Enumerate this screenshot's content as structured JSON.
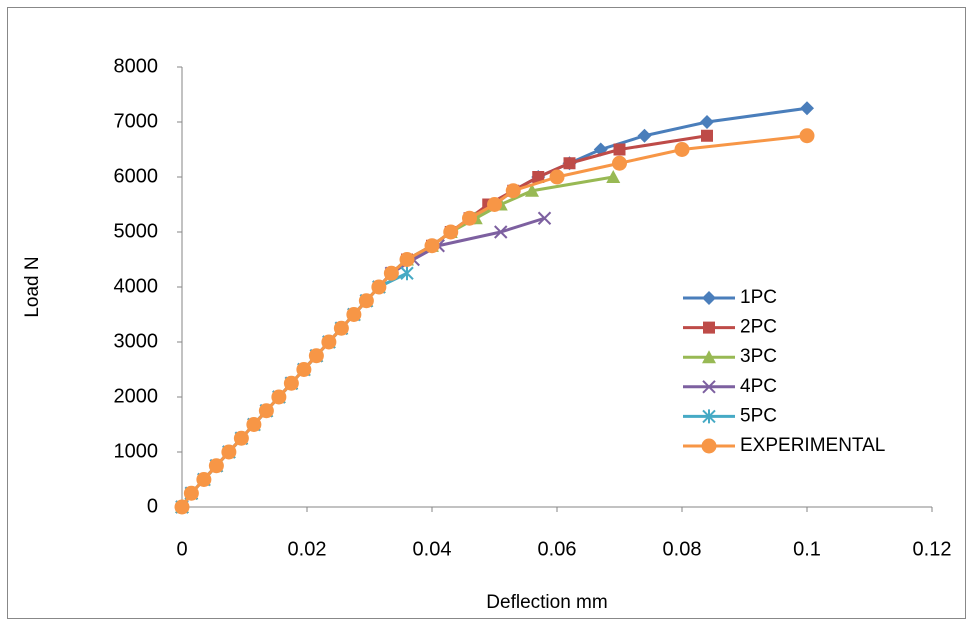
{
  "chart_data": {
    "type": "line",
    "xlabel": "Deflection mm",
    "ylabel": "Load N",
    "xlim": [
      0,
      0.12
    ],
    "xticks": [
      0,
      0.02,
      0.04,
      0.06,
      0.08,
      0.1,
      0.12
    ],
    "ylim": [
      0,
      8000
    ],
    "yticks": [
      0,
      1000,
      2000,
      3000,
      4000,
      5000,
      6000,
      7000,
      8000
    ],
    "series": [
      {
        "name": "1PC",
        "color": "#4a7ebb",
        "marker": "diamond",
        "x": [
          0,
          0.0015,
          0.0035,
          0.0055,
          0.0075,
          0.0095,
          0.0115,
          0.0135,
          0.0155,
          0.0175,
          0.0195,
          0.0215,
          0.0235,
          0.0255,
          0.0275,
          0.0295,
          0.0315,
          0.0335,
          0.036,
          0.04,
          0.043,
          0.046,
          0.05,
          0.053,
          0.057,
          0.062,
          0.067,
          0.074,
          0.084,
          0.1
        ],
        "values": [
          0,
          250,
          500,
          750,
          1000,
          1250,
          1500,
          1750,
          2000,
          2250,
          2500,
          2750,
          3000,
          3250,
          3500,
          3750,
          4000,
          4250,
          4500,
          4750,
          5000,
          5250,
          5500,
          5750,
          6000,
          6250,
          6500,
          6750,
          7000,
          7250
        ]
      },
      {
        "name": "2PC",
        "color": "#be4b48",
        "marker": "square",
        "x": [
          0,
          0.0015,
          0.0035,
          0.0055,
          0.0075,
          0.0095,
          0.0115,
          0.0135,
          0.0155,
          0.0175,
          0.0195,
          0.0215,
          0.0235,
          0.0255,
          0.0275,
          0.0295,
          0.0315,
          0.0335,
          0.036,
          0.04,
          0.043,
          0.046,
          0.049,
          0.053,
          0.057,
          0.062,
          0.07,
          0.084
        ],
        "values": [
          0,
          250,
          500,
          750,
          1000,
          1250,
          1500,
          1750,
          2000,
          2250,
          2500,
          2750,
          3000,
          3250,
          3500,
          3750,
          4000,
          4250,
          4500,
          4750,
          5000,
          5250,
          5500,
          5750,
          6000,
          6250,
          6500,
          6750
        ]
      },
      {
        "name": "3PC",
        "color": "#98b954",
        "marker": "triangle",
        "x": [
          0,
          0.0015,
          0.0035,
          0.0055,
          0.0075,
          0.0095,
          0.0115,
          0.0135,
          0.0155,
          0.0175,
          0.0195,
          0.0215,
          0.0235,
          0.0255,
          0.0275,
          0.0295,
          0.0315,
          0.0335,
          0.036,
          0.04,
          0.043,
          0.047,
          0.051,
          0.056,
          0.069
        ],
        "values": [
          0,
          250,
          500,
          750,
          1000,
          1250,
          1500,
          1750,
          2000,
          2250,
          2500,
          2750,
          3000,
          3250,
          3500,
          3750,
          4000,
          4250,
          4500,
          4750,
          5000,
          5250,
          5500,
          5750,
          6000
        ]
      },
      {
        "name": "4PC",
        "color": "#7d60a0",
        "marker": "x",
        "x": [
          0,
          0.0015,
          0.0035,
          0.0055,
          0.0075,
          0.0095,
          0.0115,
          0.0135,
          0.0155,
          0.0175,
          0.0195,
          0.0215,
          0.0235,
          0.0255,
          0.0275,
          0.0295,
          0.0315,
          0.0335,
          0.037,
          0.041,
          0.051,
          0.058
        ],
        "values": [
          0,
          250,
          500,
          750,
          1000,
          1250,
          1500,
          1750,
          2000,
          2250,
          2500,
          2750,
          3000,
          3250,
          3500,
          3750,
          4000,
          4250,
          4500,
          4750,
          5000,
          5250
        ]
      },
      {
        "name": "5PC",
        "color": "#46aac5",
        "marker": "star",
        "x": [
          0,
          0.0015,
          0.0035,
          0.0055,
          0.0075,
          0.0095,
          0.0115,
          0.0135,
          0.0155,
          0.0175,
          0.0195,
          0.0215,
          0.0235,
          0.0255,
          0.0275,
          0.0295,
          0.0315,
          0.036
        ],
        "values": [
          0,
          250,
          500,
          750,
          1000,
          1250,
          1500,
          1750,
          2000,
          2250,
          2500,
          2750,
          3000,
          3250,
          3500,
          3750,
          4000,
          4250
        ]
      },
      {
        "name": "EXPERIMENTAL",
        "color": "#f79646",
        "marker": "circle",
        "x": [
          0,
          0.0015,
          0.0035,
          0.0055,
          0.0075,
          0.0095,
          0.0115,
          0.0135,
          0.0155,
          0.0175,
          0.0195,
          0.0215,
          0.0235,
          0.0255,
          0.0275,
          0.0295,
          0.0315,
          0.0335,
          0.036,
          0.04,
          0.043,
          0.046,
          0.05,
          0.053,
          0.06,
          0.07,
          0.08,
          0.1
        ],
        "values": [
          0,
          250,
          500,
          750,
          1000,
          1250,
          1500,
          1750,
          2000,
          2250,
          2500,
          2750,
          3000,
          3250,
          3500,
          3750,
          4000,
          4250,
          4500,
          4750,
          5000,
          5250,
          5500,
          5750,
          6000,
          6250,
          6500,
          6750
        ]
      }
    ]
  }
}
